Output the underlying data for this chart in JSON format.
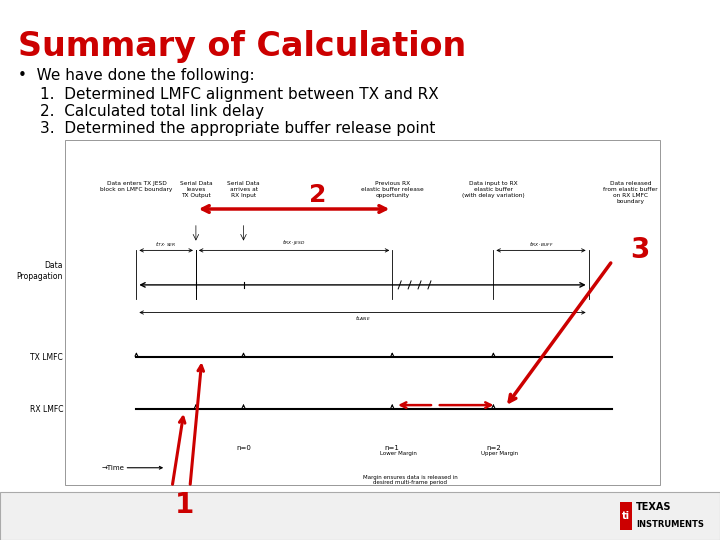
{
  "title": "Summary of Calculation",
  "title_color": "#CC0000",
  "bg_color": "#FFFFFF",
  "bullet_text": "We have done the following:",
  "items": [
    "Determined LMFC alignment between TX and RX",
    "Calculated total link delay",
    "Determined the appropriate buffer release point"
  ],
  "red_color": "#CC0000",
  "footer_bg": "#F0F0F0",
  "footer_border": "#AAAAAA"
}
